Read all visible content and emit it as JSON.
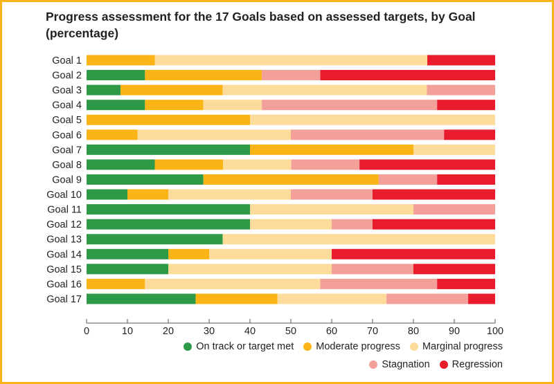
{
  "chart_data": {
    "type": "bar",
    "orientation": "horizontal",
    "stacked": true,
    "title": "Progress assessment for the 17 Goals based on assessed targets, by Goal (percentage)",
    "title_lines": [
      "Progress assessment for the 17 Goals based on assessed targets, by Goal",
      "(percentage)"
    ],
    "xlabel": "",
    "ylabel": "",
    "xlim": [
      0,
      100
    ],
    "xticks": [
      "0",
      "10",
      "20",
      "30",
      "40",
      "50",
      "60",
      "70",
      "80",
      "90",
      "100"
    ],
    "categories": [
      "Goal 1",
      "Goal 2",
      "Goal 3",
      "Goal 4",
      "Goal 5",
      "Goal 6",
      "Goal 7",
      "Goal 8",
      "Goal 9",
      "Goal 10",
      "Goal 11",
      "Goal 12",
      "Goal 13",
      "Goal 14",
      "Goal 15",
      "Goal 16",
      "Goal 17"
    ],
    "series": [
      {
        "name": "On track or target met",
        "color": "#2e9a48",
        "values": [
          0,
          14.3,
          8.3,
          14.3,
          0,
          0,
          40,
          16.7,
          28.6,
          10,
          40,
          40,
          33.3,
          20,
          20,
          0,
          26.7
        ]
      },
      {
        "name": "Moderate progress",
        "color": "#fbb416",
        "values": [
          16.7,
          28.6,
          25,
          14.3,
          40,
          12.5,
          40,
          16.7,
          42.9,
          10,
          0,
          0,
          0,
          10,
          0,
          14.3,
          20
        ]
      },
      {
        "name": "Marginal progress",
        "color": "#fddb9b",
        "values": [
          66.7,
          0,
          50,
          14.3,
          60,
          37.5,
          20,
          16.7,
          0,
          30,
          40,
          20,
          66.7,
          30,
          40,
          42.9,
          26.7
        ]
      },
      {
        "name": "Stagnation",
        "color": "#f4a09a",
        "values": [
          0,
          14.3,
          16.7,
          42.9,
          0,
          37.5,
          0,
          16.7,
          14.3,
          20,
          20,
          10,
          0,
          0,
          20,
          28.6,
          20
        ]
      },
      {
        "name": "Regression",
        "color": "#e91c2d",
        "values": [
          16.6,
          42.8,
          0,
          14.2,
          0,
          12.5,
          0,
          33.2,
          14.2,
          30,
          0,
          30,
          0,
          40,
          20,
          14.2,
          6.6
        ]
      }
    ],
    "legend_position": "bottom-right",
    "grid": false
  }
}
